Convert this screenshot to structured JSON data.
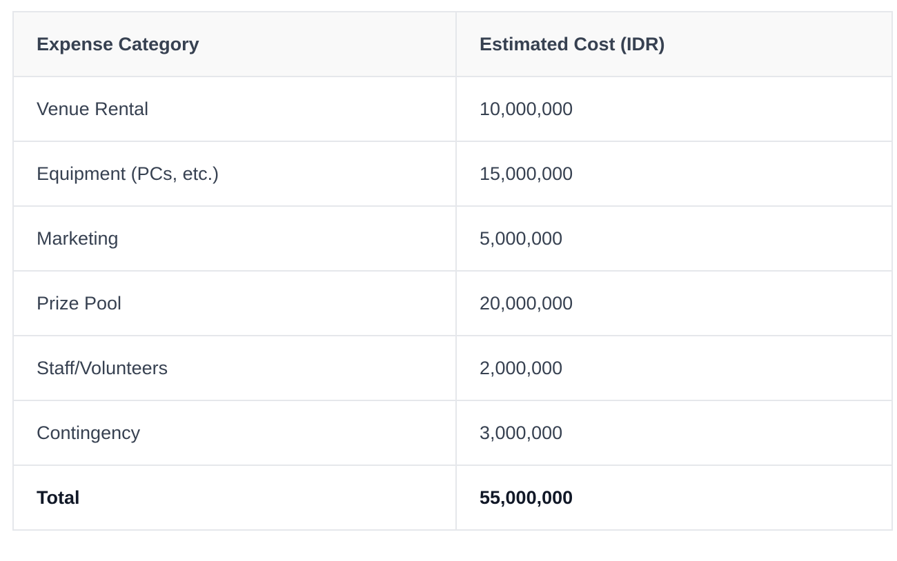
{
  "table": {
    "headers": [
      "Expense Category",
      "Estimated Cost (IDR)"
    ],
    "rows": [
      [
        "Venue Rental",
        "10,000,000"
      ],
      [
        "Equipment (PCs, etc.)",
        "15,000,000"
      ],
      [
        "Marketing",
        "5,000,000"
      ],
      [
        "Prize Pool",
        "20,000,000"
      ],
      [
        "Staff/Volunteers",
        "2,000,000"
      ],
      [
        "Contingency",
        "3,000,000"
      ]
    ],
    "total": [
      "Total",
      "55,000,000"
    ]
  }
}
